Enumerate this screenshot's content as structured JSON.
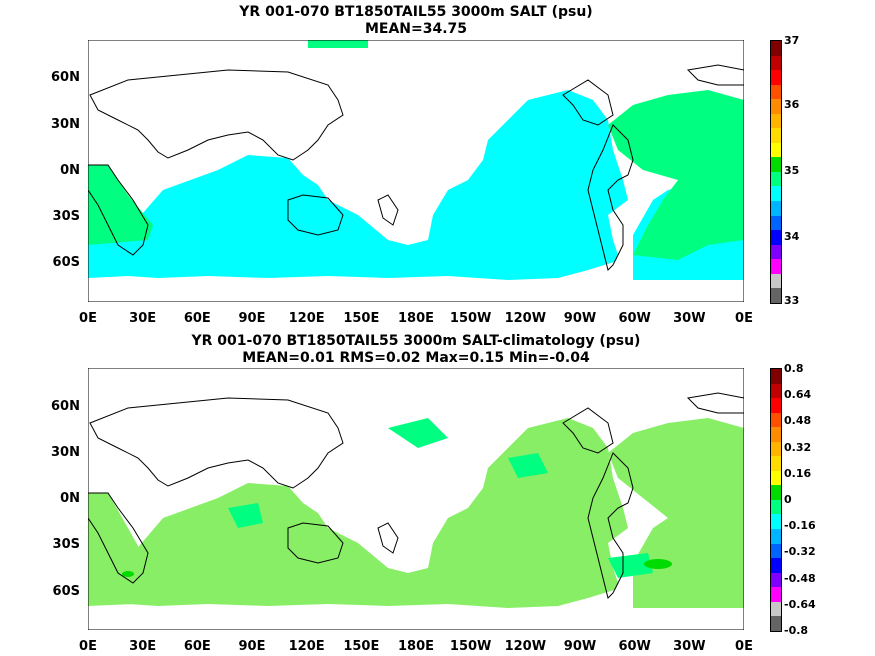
{
  "panels": [
    {
      "title_line1": "YR 001-070 BT1850TAIL55 3000m SALT (psu)",
      "title_line2": "MEAN=34.75",
      "lat_labels": [
        "60N",
        "30N",
        "0N",
        "30S",
        "60S"
      ],
      "lon_labels": [
        "0E",
        "30E",
        "60E",
        "90E",
        "120E",
        "150E",
        "180E",
        "150W",
        "120W",
        "90W",
        "60W",
        "30W",
        "0E"
      ],
      "colorbar_labels": [
        "37",
        "36",
        "35",
        "34",
        "33"
      ],
      "colorbar_colors": [
        "#800000",
        "#c00000",
        "#ff0000",
        "#ff5000",
        "#ff8c00",
        "#ffb400",
        "#ffdc00",
        "#ffff00",
        "#00dc00",
        "#00ff80",
        "#00ffff",
        "#00b4ff",
        "#0064ff",
        "#0000ff",
        "#8000ff",
        "#ff00ff",
        "#c8c8c8",
        "#646464"
      ]
    },
    {
      "title_line1": "YR 001-070 BT1850TAIL55 3000m SALT-climatology (psu)",
      "title_line2": "MEAN=0.01   RMS=0.02   Max=0.15   Min=-0.04",
      "lat_labels": [
        "60N",
        "30N",
        "0N",
        "30S",
        "60S"
      ],
      "lon_labels": [
        "0E",
        "30E",
        "60E",
        "90E",
        "120E",
        "150E",
        "180E",
        "150W",
        "120W",
        "90W",
        "60W",
        "30W",
        "0E"
      ],
      "colorbar_labels": [
        "0.8",
        "0.64",
        "0.48",
        "0.32",
        "0.16",
        "0",
        "-0.16",
        "-0.32",
        "-0.48",
        "-0.64",
        "-0.8"
      ],
      "colorbar_colors": [
        "#800000",
        "#c00000",
        "#ff0000",
        "#ff5000",
        "#ff8c00",
        "#ffb400",
        "#ffdc00",
        "#ffff00",
        "#00dc00",
        "#00ff80",
        "#00ffff",
        "#00b4ff",
        "#0064ff",
        "#0000ff",
        "#8000ff",
        "#ff00ff",
        "#c8c8c8",
        "#646464"
      ]
    }
  ],
  "colors": {
    "land": "#ffffff",
    "panel1_ocean": "#00ffff",
    "panel1_high": "#00ff80",
    "panel2_ocean": "#88ee66",
    "panel2_high": "#00ff80",
    "panel2_peak": "#00dc00"
  }
}
